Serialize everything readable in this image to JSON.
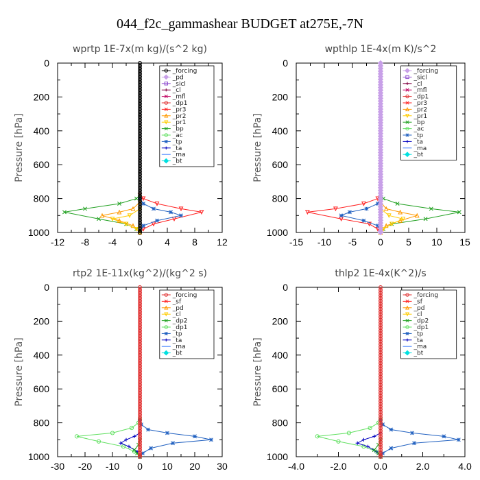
{
  "figure": {
    "title": "044_f2c_gammashear  BUDGET at275E,-7N"
  },
  "chart_data": [
    {
      "type": "line",
      "title": "wprtp   1E-7x(m kg)/(s^2 kg)",
      "ylabel": "Pressure [hPa]",
      "xlim": [
        -12,
        12
      ],
      "ylim": [
        1000,
        0
      ],
      "xticks": [
        -12,
        -8,
        -4,
        0,
        4,
        8,
        12
      ],
      "xtick_labels": [
        "-12",
        "-8",
        "-4",
        "0",
        "4",
        "8",
        "12"
      ],
      "yticks": [
        0,
        200,
        400,
        600,
        800,
        1000
      ],
      "ytick_labels": [
        "0",
        "200",
        "400",
        "600",
        "800",
        "1000"
      ],
      "legend_position": "top-right",
      "legend": [
        {
          "name": "_forcing",
          "color": "#000000",
          "marker": "circle"
        },
        {
          "name": "_pd",
          "color": "#c8a0e8",
          "marker": "diamond"
        },
        {
          "name": "_sicl",
          "color": "#9050d0",
          "marker": "square"
        },
        {
          "name": "_cl",
          "color": "#800040",
          "marker": "plus"
        },
        {
          "name": "_mfl",
          "color": "#c00060",
          "marker": "cross"
        },
        {
          "name": "_dp1",
          "color": "#e03030",
          "marker": "circle"
        },
        {
          "name": "_pr3",
          "color": "#ff2020",
          "marker": "cross"
        },
        {
          "name": "_pr2",
          "color": "#ff9900",
          "marker": "triangle"
        },
        {
          "name": "_pr1",
          "color": "#ffcc00",
          "marker": "triangle-down"
        },
        {
          "name": "_bp",
          "color": "#20a020",
          "marker": "cross"
        },
        {
          "name": "_ac",
          "color": "#60e060",
          "marker": "circle"
        },
        {
          "name": "_tp",
          "color": "#2060c0",
          "marker": "star"
        },
        {
          "name": "_ta",
          "color": "#0000c0",
          "marker": "plus"
        },
        {
          "name": "_ma",
          "color": "#4080ff",
          "marker": "none"
        },
        {
          "name": "_bt",
          "color": "#00e0e0",
          "marker": "diamond"
        }
      ],
      "series": [
        {
          "color": "#ff2020",
          "marker": "triangle-down",
          "x": [
            0,
            0,
            0.5,
            2.5,
            6,
            9,
            5,
            2,
            0.5,
            0
          ],
          "y": [
            0,
            780,
            800,
            830,
            860,
            880,
            920,
            950,
            980,
            1000
          ]
        },
        {
          "color": "#20a020",
          "marker": "cross",
          "x": [
            0,
            0,
            -0.5,
            -3,
            -8,
            -11,
            -6,
            -2,
            -0.5,
            0
          ],
          "y": [
            0,
            780,
            800,
            830,
            860,
            880,
            920,
            950,
            980,
            1000
          ]
        },
        {
          "color": "#2060c0",
          "marker": "star",
          "x": [
            0,
            0,
            0.5,
            2,
            4.5,
            6,
            2.5,
            0.5,
            0
          ],
          "y": [
            0,
            800,
            830,
            860,
            880,
            900,
            930,
            960,
            1000
          ]
        },
        {
          "color": "#ff9900",
          "marker": "triangle",
          "x": [
            0,
            0,
            -1,
            -3,
            -5.5,
            -3,
            -1,
            0
          ],
          "y": [
            0,
            820,
            860,
            880,
            900,
            930,
            960,
            1000
          ]
        },
        {
          "color": "#ffcc00",
          "marker": "triangle-down",
          "x": [
            0,
            0,
            -1.5,
            -4,
            -2,
            -0.5,
            0
          ],
          "y": [
            0,
            860,
            900,
            920,
            950,
            980,
            1000
          ]
        },
        {
          "color": "#000000",
          "marker": "circle",
          "x": [
            0,
            0
          ],
          "y": [
            0,
            1000
          ]
        }
      ]
    },
    {
      "type": "line",
      "title": "wpthlp   1E-4x(m K)/s^2",
      "ylabel": "Pressure [hPa]",
      "xlim": [
        -15,
        15
      ],
      "ylim": [
        1000,
        0
      ],
      "xticks": [
        -15,
        -10,
        -5,
        0,
        5,
        10,
        15
      ],
      "xtick_labels": [
        "-15",
        "-10",
        "-5",
        "0",
        "5",
        "10",
        "15"
      ],
      "yticks": [
        0,
        200,
        400,
        600,
        800,
        1000
      ],
      "ytick_labels": [
        "0",
        "200",
        "400",
        "600",
        "800",
        "1000"
      ],
      "legend_position": "top-right",
      "legend": [
        {
          "name": "_forcing",
          "color": "#c8a0e8",
          "marker": "diamond"
        },
        {
          "name": "_sicl",
          "color": "#9050d0",
          "marker": "square"
        },
        {
          "name": "_cl",
          "color": "#800040",
          "marker": "plus"
        },
        {
          "name": "_mfl",
          "color": "#c00060",
          "marker": "cross"
        },
        {
          "name": "_dp1",
          "color": "#e03030",
          "marker": "circle"
        },
        {
          "name": "_pr3",
          "color": "#ff2020",
          "marker": "cross"
        },
        {
          "name": "_pr2",
          "color": "#ff9900",
          "marker": "triangle"
        },
        {
          "name": "_pr1",
          "color": "#ffcc00",
          "marker": "triangle-down"
        },
        {
          "name": "_bp",
          "color": "#20a020",
          "marker": "cross"
        },
        {
          "name": "_ac",
          "color": "#60e060",
          "marker": "circle"
        },
        {
          "name": "_tp",
          "color": "#2060c0",
          "marker": "star"
        },
        {
          "name": "_ta",
          "color": "#0000c0",
          "marker": "plus"
        },
        {
          "name": "_ma",
          "color": "#4080ff",
          "marker": "none"
        },
        {
          "name": "_bt",
          "color": "#00e0e0",
          "marker": "diamond"
        }
      ],
      "series": [
        {
          "color": "#ff2020",
          "marker": "triangle-down",
          "x": [
            0,
            0,
            -0.5,
            -3,
            -8,
            -13,
            -7,
            -2,
            -0.5,
            0
          ],
          "y": [
            0,
            780,
            800,
            830,
            860,
            880,
            920,
            950,
            980,
            1000
          ]
        },
        {
          "color": "#20a020",
          "marker": "cross",
          "x": [
            0,
            0,
            0.5,
            3,
            9,
            14,
            8,
            2,
            0.5,
            0
          ],
          "y": [
            0,
            780,
            800,
            830,
            860,
            880,
            920,
            950,
            980,
            1000
          ]
        },
        {
          "color": "#2060c0",
          "marker": "star",
          "x": [
            0,
            0,
            -0.5,
            -2.5,
            -5.5,
            -7,
            -3,
            -0.5,
            0
          ],
          "y": [
            0,
            800,
            830,
            860,
            880,
            900,
            930,
            960,
            1000
          ]
        },
        {
          "color": "#ff9900",
          "marker": "triangle",
          "x": [
            0,
            0,
            1,
            3.5,
            6.5,
            3.5,
            1,
            0
          ],
          "y": [
            0,
            820,
            860,
            880,
            900,
            930,
            960,
            1000
          ]
        },
        {
          "color": "#ffcc00",
          "marker": "triangle-down",
          "x": [
            0,
            0,
            1.5,
            4,
            2,
            0.5,
            0
          ],
          "y": [
            0,
            860,
            900,
            920,
            950,
            980,
            1000
          ]
        },
        {
          "color": "#c8a0e8",
          "marker": "diamond",
          "x": [
            0,
            0
          ],
          "y": [
            0,
            1000
          ]
        }
      ]
    },
    {
      "type": "line",
      "title": "rtp2   1E-11x(kg^2)/(kg^2 s)",
      "ylabel": "Pressure [hPa]",
      "xlim": [
        -30,
        30
      ],
      "ylim": [
        1000,
        0
      ],
      "xticks": [
        -30,
        -20,
        -10,
        0,
        10,
        20,
        30
      ],
      "xtick_labels": [
        "-30",
        "-20",
        "-10",
        "0",
        "10",
        "20",
        "30"
      ],
      "yticks": [
        0,
        200,
        400,
        600,
        800,
        1000
      ],
      "ytick_labels": [
        "0",
        "200",
        "400",
        "600",
        "800",
        "1000"
      ],
      "legend_position": "top-right",
      "legend": [
        {
          "name": "_forcing",
          "color": "#e03030",
          "marker": "circle"
        },
        {
          "name": "_sf",
          "color": "#ff2020",
          "marker": "cross"
        },
        {
          "name": "_pd",
          "color": "#ff9900",
          "marker": "triangle"
        },
        {
          "name": "_cl",
          "color": "#ffcc00",
          "marker": "triangle-down"
        },
        {
          "name": "_dp2",
          "color": "#20a020",
          "marker": "cross"
        },
        {
          "name": "_dp1",
          "color": "#60e060",
          "marker": "circle"
        },
        {
          "name": "_tp",
          "color": "#2060c0",
          "marker": "star"
        },
        {
          "name": "_ta",
          "color": "#0000c0",
          "marker": "plus"
        },
        {
          "name": "_ma",
          "color": "#4080ff",
          "marker": "none"
        },
        {
          "name": "_bt",
          "color": "#00e0e0",
          "marker": "diamond"
        }
      ],
      "series": [
        {
          "color": "#60e060",
          "marker": "circle",
          "x": [
            0,
            0,
            -0.5,
            -3,
            -10,
            -23,
            -15,
            -6,
            -2,
            0
          ],
          "y": [
            0,
            780,
            800,
            830,
            860,
            880,
            910,
            940,
            970,
            1000
          ]
        },
        {
          "color": "#2060c0",
          "marker": "star",
          "x": [
            0,
            0,
            0.5,
            3,
            10,
            20,
            26,
            12,
            4,
            1,
            0
          ],
          "y": [
            0,
            780,
            810,
            840,
            860,
            880,
            900,
            920,
            950,
            980,
            1000
          ]
        },
        {
          "color": "#0000c0",
          "marker": "plus",
          "x": [
            0,
            0,
            -2,
            -5,
            -7,
            -4,
            -1,
            0
          ],
          "y": [
            0,
            860,
            880,
            900,
            920,
            940,
            970,
            1000
          ]
        },
        {
          "color": "#20a020",
          "marker": "cross",
          "x": [
            0,
            0,
            -0.5,
            -2,
            -1,
            0
          ],
          "y": [
            0,
            900,
            930,
            960,
            980,
            1000
          ]
        },
        {
          "color": "#e03030",
          "marker": "circle",
          "x": [
            0,
            0
          ],
          "y": [
            0,
            1000
          ]
        }
      ]
    },
    {
      "type": "line",
      "title": "thlp2   1E-4x(K^2)/s",
      "ylabel": "Pressure [hPa]",
      "xlim": [
        -4,
        4
      ],
      "ylim": [
        1000,
        0
      ],
      "xticks": [
        -4,
        -2,
        0,
        2,
        4
      ],
      "xtick_labels": [
        "-4.0",
        "-2.0",
        "0.0",
        "2.0",
        "4.0"
      ],
      "yticks": [
        0,
        200,
        400,
        600,
        800,
        1000
      ],
      "ytick_labels": [
        "0",
        "200",
        "400",
        "600",
        "800",
        "1000"
      ],
      "legend_position": "top-right",
      "legend": [
        {
          "name": "_forcing",
          "color": "#e03030",
          "marker": "circle"
        },
        {
          "name": "_sf",
          "color": "#ff2020",
          "marker": "cross"
        },
        {
          "name": "_pd",
          "color": "#ff9900",
          "marker": "triangle"
        },
        {
          "name": "_cl",
          "color": "#ffcc00",
          "marker": "triangle-down"
        },
        {
          "name": "_dp2",
          "color": "#20a020",
          "marker": "cross"
        },
        {
          "name": "_dp1",
          "color": "#60e060",
          "marker": "circle"
        },
        {
          "name": "_tp",
          "color": "#2060c0",
          "marker": "star"
        },
        {
          "name": "_ta",
          "color": "#0000c0",
          "marker": "plus"
        },
        {
          "name": "_ma",
          "color": "#4080ff",
          "marker": "none"
        },
        {
          "name": "_bt",
          "color": "#00e0e0",
          "marker": "diamond"
        }
      ],
      "series": [
        {
          "color": "#60e060",
          "marker": "circle",
          "x": [
            0,
            0,
            -0.1,
            -0.5,
            -1.5,
            -3,
            -2,
            -0.8,
            -0.2,
            0
          ],
          "y": [
            0,
            780,
            800,
            830,
            860,
            880,
            910,
            940,
            970,
            1000
          ]
        },
        {
          "color": "#2060c0",
          "marker": "star",
          "x": [
            0,
            0,
            0.1,
            0.5,
            1.5,
            3,
            3.7,
            1.6,
            0.5,
            0.1,
            0
          ],
          "y": [
            0,
            780,
            810,
            840,
            860,
            880,
            900,
            920,
            950,
            980,
            1000
          ]
        },
        {
          "color": "#0000c0",
          "marker": "plus",
          "x": [
            0,
            0,
            -0.3,
            -0.8,
            -1.1,
            -0.6,
            -0.2,
            0
          ],
          "y": [
            0,
            860,
            880,
            900,
            920,
            940,
            970,
            1000
          ]
        },
        {
          "color": "#20a020",
          "marker": "cross",
          "x": [
            0,
            0,
            -0.1,
            -0.3,
            -0.1,
            0
          ],
          "y": [
            0,
            900,
            930,
            960,
            980,
            1000
          ]
        },
        {
          "color": "#e03030",
          "marker": "circle",
          "x": [
            0,
            0
          ],
          "y": [
            0,
            1000
          ]
        }
      ]
    }
  ]
}
